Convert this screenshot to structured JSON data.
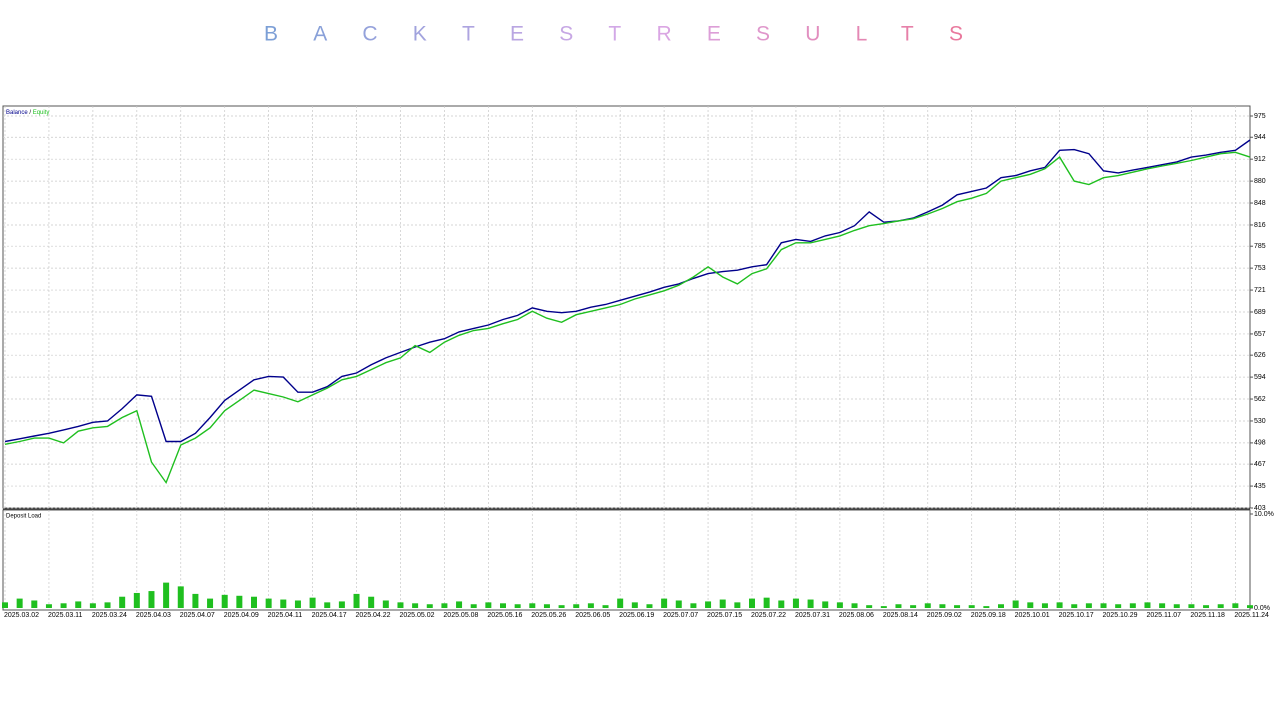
{
  "title": "BACKTESTRESULTS",
  "chart_data": [
    {
      "type": "line",
      "categories": [
        "2025.03.02",
        null,
        null,
        "2025.03.11",
        null,
        null,
        "2025.03.24",
        null,
        null,
        "2025.04.03",
        null,
        null,
        "2025.04.07",
        null,
        null,
        "2025.04.09",
        null,
        null,
        "2025.04.11",
        null,
        null,
        "2025.04.17",
        null,
        null,
        "2025.04.22",
        null,
        null,
        "2025.05.02",
        null,
        null,
        "2025.05.08",
        null,
        null,
        "2025.05.16",
        null,
        null,
        "2025.05.26",
        null,
        null,
        "2025.06.05",
        null,
        null,
        "2025.06.19",
        null,
        null,
        "2025.07.07",
        null,
        null,
        "2025.07.15",
        null,
        null,
        "2025.07.22",
        null,
        null,
        "2025.07.31",
        null,
        null,
        "2025.08.06",
        null,
        null,
        "2025.08.14",
        null,
        null,
        "2025.09.02",
        null,
        null,
        "2025.09.18",
        null,
        null,
        "2025.10.01",
        null,
        null,
        "2025.10.17",
        null,
        null,
        "2025.10.29",
        null,
        null,
        "2025.11.07",
        null,
        null,
        "2025.11.18",
        null,
        null,
        "2025.11.24",
        null
      ],
      "series": [
        {
          "name": "Balance",
          "color": "#00008b",
          "values": [
            500,
            504,
            508,
            512,
            517,
            522,
            528,
            530,
            548,
            568,
            566,
            500,
            500,
            512,
            535,
            560,
            575,
            590,
            595,
            594,
            572,
            572,
            580,
            595,
            600,
            612,
            622,
            630,
            638,
            645,
            650,
            660,
            665,
            670,
            678,
            684,
            695,
            690,
            688,
            690,
            696,
            700,
            706,
            712,
            718,
            725,
            730,
            738,
            745,
            748,
            750,
            755,
            758,
            790,
            795,
            792,
            800,
            805,
            815,
            835,
            820,
            822,
            826,
            835,
            845,
            860,
            865,
            870,
            885,
            888,
            895,
            900,
            925,
            926,
            920,
            895,
            892,
            896,
            900,
            904,
            908,
            915,
            918,
            922,
            925,
            940
          ]
        },
        {
          "name": "Equity",
          "color": "#1fbf1f",
          "values": [
            496,
            500,
            505,
            505,
            498,
            515,
            520,
            522,
            535,
            545,
            470,
            440,
            495,
            505,
            520,
            545,
            560,
            575,
            570,
            565,
            558,
            568,
            578,
            590,
            595,
            605,
            615,
            622,
            640,
            630,
            645,
            655,
            662,
            665,
            672,
            678,
            690,
            680,
            674,
            685,
            690,
            695,
            700,
            708,
            714,
            720,
            728,
            740,
            755,
            740,
            730,
            745,
            752,
            780,
            790,
            790,
            795,
            800,
            808,
            815,
            818,
            822,
            825,
            832,
            840,
            850,
            855,
            862,
            880,
            885,
            890,
            898,
            915,
            880,
            875,
            885,
            888,
            893,
            898,
            902,
            906,
            910,
            915,
            920,
            922,
            915
          ]
        }
      ],
      "ylim": [
        403,
        975
      ],
      "yticks": [
        403,
        435,
        467,
        498,
        530,
        562,
        594,
        626,
        657,
        689,
        721,
        753,
        785,
        816,
        848,
        880,
        912,
        944,
        975
      ],
      "grid": true
    },
    {
      "type": "bar",
      "title": "Deposit Load",
      "color": "#1fbf1f",
      "values": [
        0.6,
        1.0,
        0.8,
        0.4,
        0.5,
        0.7,
        0.5,
        0.6,
        1.2,
        1.6,
        1.8,
        2.7,
        2.3,
        1.5,
        1.0,
        1.4,
        1.3,
        1.2,
        1.0,
        0.9,
        0.8,
        1.1,
        0.6,
        0.7,
        1.5,
        1.2,
        0.8,
        0.6,
        0.5,
        0.4,
        0.5,
        0.7,
        0.4,
        0.6,
        0.5,
        0.4,
        0.5,
        0.4,
        0.3,
        0.4,
        0.5,
        0.3,
        1.0,
        0.6,
        0.4,
        1.0,
        0.8,
        0.5,
        0.7,
        0.9,
        0.6,
        1.0,
        1.1,
        0.8,
        1.0,
        0.9,
        0.7,
        0.6,
        0.5,
        0.3,
        0.2,
        0.4,
        0.3,
        0.5,
        0.4,
        0.3,
        0.3,
        0.2,
        0.4,
        0.8,
        0.6,
        0.5,
        0.6,
        0.4,
        0.5,
        0.5,
        0.4,
        0.5,
        0.6,
        0.5,
        0.4,
        0.4,
        0.3,
        0.4,
        0.5,
        0.3
      ],
      "ylim": [
        0,
        10
      ],
      "yticks": [
        {
          "value": 0,
          "label": "0.0%"
        },
        {
          "value": 10,
          "label": "10.0%"
        }
      ]
    }
  ]
}
